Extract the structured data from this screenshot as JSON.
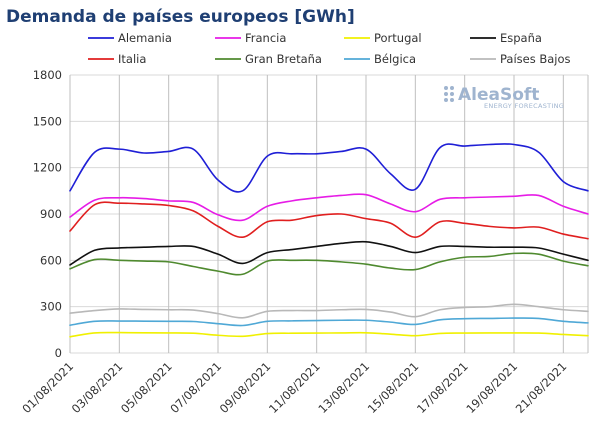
{
  "title": "Demanda de países europeos [GWh]",
  "logo": {
    "main": "AleaSoft",
    "sub": "ENERGY FORECASTING"
  },
  "chart_data": {
    "type": "line",
    "title": "Demanda de países europeos [GWh]",
    "xlabel": "",
    "ylabel": "",
    "ylim": [
      0,
      1800
    ],
    "yticks": [
      "0",
      "300",
      "600",
      "900",
      "1200",
      "1500",
      "1800"
    ],
    "grid": true,
    "legend_position": "top",
    "x_tick_labels": [
      "01/08/2021",
      "03/08/2021",
      "05/08/2021",
      "07/08/2021",
      "09/08/2021",
      "11/08/2021",
      "13/08/2021",
      "15/08/2021",
      "17/08/2021",
      "19/08/2021",
      "21/08/2021"
    ],
    "x": [
      "01/08/2021",
      "02/08/2021",
      "03/08/2021",
      "04/08/2021",
      "05/08/2021",
      "06/08/2021",
      "07/08/2021",
      "08/08/2021",
      "09/08/2021",
      "10/08/2021",
      "11/08/2021",
      "12/08/2021",
      "13/08/2021",
      "14/08/2021",
      "15/08/2021",
      "16/08/2021",
      "17/08/2021",
      "18/08/2021",
      "19/08/2021",
      "20/08/2021",
      "21/08/2021",
      "22/08/2021"
    ],
    "series": [
      {
        "name": "Alemania",
        "color": "#1f1fd6",
        "values": [
          1050,
          1300,
          1320,
          1295,
          1305,
          1320,
          1120,
          1050,
          1275,
          1290,
          1290,
          1305,
          1320,
          1160,
          1060,
          1330,
          1340,
          1350,
          1350,
          1300,
          1110,
          1050
        ]
      },
      {
        "name": "Francia",
        "color": "#e61ce6",
        "values": [
          880,
          990,
          1005,
          1000,
          985,
          975,
          895,
          860,
          950,
          985,
          1005,
          1020,
          1025,
          965,
          915,
          995,
          1005,
          1010,
          1015,
          1020,
          950,
          900
        ]
      },
      {
        "name": "Portugal",
        "color": "#f0f000",
        "values": [
          105,
          130,
          132,
          131,
          130,
          128,
          115,
          108,
          126,
          128,
          129,
          130,
          131,
          122,
          112,
          127,
          129,
          130,
          130,
          129,
          120,
          112
        ]
      },
      {
        "name": "España",
        "color": "#111111",
        "values": [
          570,
          665,
          680,
          685,
          690,
          690,
          640,
          580,
          650,
          670,
          690,
          710,
          720,
          690,
          650,
          690,
          690,
          685,
          685,
          680,
          640,
          600
        ]
      },
      {
        "name": "Italia",
        "color": "#e01f1f",
        "values": [
          790,
          960,
          970,
          965,
          955,
          920,
          820,
          750,
          850,
          860,
          890,
          900,
          870,
          840,
          750,
          850,
          840,
          820,
          810,
          815,
          770,
          740
        ]
      },
      {
        "name": "Gran Bretaña",
        "color": "#4f8a2f",
        "values": [
          545,
          605,
          600,
          595,
          590,
          560,
          530,
          510,
          595,
          600,
          600,
          590,
          575,
          550,
          540,
          590,
          620,
          625,
          645,
          640,
          595,
          565
        ]
      },
      {
        "name": "Bélgica",
        "color": "#4fa8d6",
        "values": [
          180,
          205,
          207,
          206,
          205,
          204,
          190,
          178,
          205,
          208,
          210,
          212,
          212,
          200,
          185,
          215,
          222,
          224,
          226,
          224,
          205,
          195
        ]
      },
      {
        "name": "Países Bajos",
        "color": "#b8b8b8",
        "values": [
          258,
          275,
          285,
          282,
          280,
          278,
          255,
          228,
          270,
          275,
          275,
          280,
          282,
          265,
          235,
          280,
          295,
          300,
          315,
          300,
          280,
          270
        ]
      }
    ]
  }
}
